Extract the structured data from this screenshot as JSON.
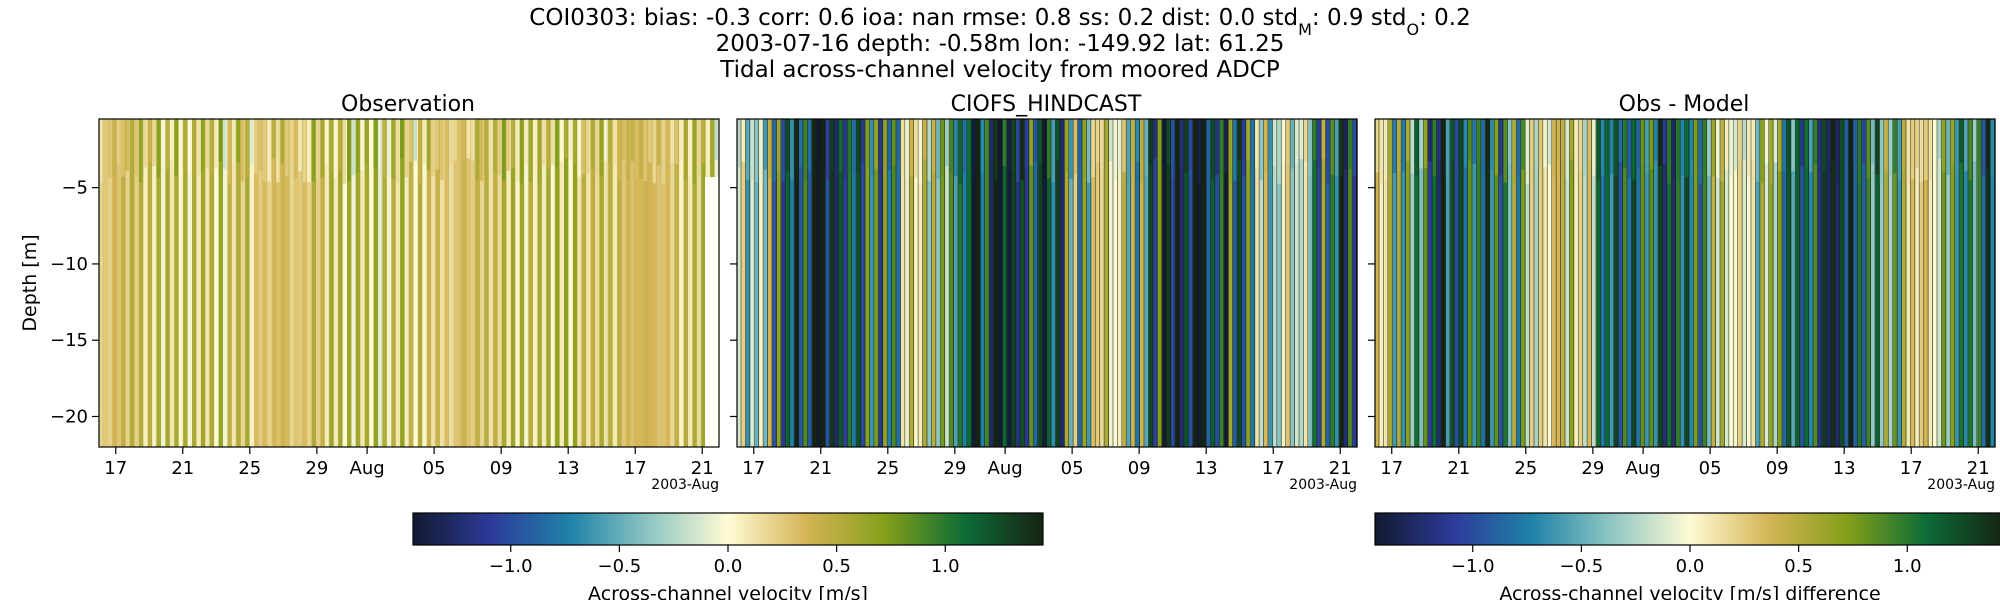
{
  "figure": {
    "title_lines": [
      "COI0303: bias: -0.3  corr: 0.6  ioa: nan  rmse: 0.8  ss: 0.2  dist: 0.0  std",
      "2003-07-16 depth: -0.58m lon: -149.92 lat: 61.25",
      "Tidal across-channel velocity from moored ADCP"
    ],
    "title_std_model": {
      "sub": "M",
      "value": ": 0.9"
    },
    "title_std_obs": {
      "prefix": "  std",
      "sub": "O",
      "value": ": 0.2"
    }
  },
  "chart_data": [
    {
      "type": "heatmap",
      "title": "Observation",
      "ylabel": "Depth [m]",
      "xlabel": "",
      "x_range": [
        "2003-07-16",
        "2003-08-22"
      ],
      "x_ticks": [
        "17",
        "21",
        "25",
        "29",
        "Aug",
        "05",
        "09",
        "13",
        "17",
        "21"
      ],
      "x_tick_dates": [
        "2003-07-17",
        "2003-07-21",
        "2003-07-25",
        "2003-07-29",
        "2003-08-01",
        "2003-08-05",
        "2003-08-09",
        "2003-08-13",
        "2003-08-17",
        "2003-08-21"
      ],
      "x_offset_label": "2003-Aug",
      "ylim": [
        -22,
        -0.5
      ],
      "y_ticks": [
        -5,
        -10,
        -15,
        -20
      ],
      "colormap": "delta",
      "clim": [
        -1.45,
        1.45
      ],
      "typical_range": [
        0.0,
        0.6
      ],
      "pattern": "tidal vertical stripes, mostly light yellow to olive"
    },
    {
      "type": "heatmap",
      "title": "CIOFS_HINDCAST",
      "ylabel": "",
      "xlabel": "",
      "x_range": [
        "2003-07-16",
        "2003-08-22"
      ],
      "x_ticks": [
        "17",
        "21",
        "25",
        "29",
        "Aug",
        "05",
        "09",
        "13",
        "17",
        "21"
      ],
      "x_tick_dates": [
        "2003-07-17",
        "2003-07-21",
        "2003-07-25",
        "2003-07-29",
        "2003-08-01",
        "2003-08-05",
        "2003-08-09",
        "2003-08-13",
        "2003-08-17",
        "2003-08-21"
      ],
      "x_offset_label": "2003-Aug",
      "ylim": [
        -22,
        -0.5
      ],
      "y_ticks": [
        -5,
        -10,
        -15,
        -20
      ],
      "colormap": "delta",
      "clim": [
        -1.45,
        1.45
      ],
      "typical_range": [
        -1.3,
        1.3
      ],
      "pattern": "strong tidal stripes alternating dark blue and green"
    },
    {
      "type": "heatmap",
      "title": "Obs - Model",
      "ylabel": "",
      "xlabel": "",
      "x_range": [
        "2003-07-16",
        "2003-08-22"
      ],
      "x_ticks": [
        "17",
        "21",
        "25",
        "29",
        "Aug",
        "05",
        "09",
        "13",
        "17",
        "21"
      ],
      "x_tick_dates": [
        "2003-07-17",
        "2003-07-21",
        "2003-07-25",
        "2003-07-29",
        "2003-08-01",
        "2003-08-05",
        "2003-08-09",
        "2003-08-13",
        "2003-08-17",
        "2003-08-21"
      ],
      "x_offset_label": "2003-Aug",
      "ylim": [
        -22,
        -0.5
      ],
      "y_ticks": [
        -5,
        -10,
        -15,
        -20
      ],
      "colormap": "delta",
      "clim": [
        -1.45,
        1.45
      ],
      "typical_range": [
        -1.0,
        1.2
      ],
      "pattern": "tidal stripes of teal, green and dark green"
    }
  ],
  "colorbars": [
    {
      "label": "Across-channel velocity [m/s]",
      "ticks": [
        "−1.0",
        "−0.5",
        "0.0",
        "0.5",
        "1.0"
      ],
      "tick_values": [
        -1.0,
        -0.5,
        0.0,
        0.5,
        1.0
      ],
      "range": [
        -1.45,
        1.45
      ]
    },
    {
      "label": "Across-channel velocity [m/s] difference",
      "ticks": [
        "−1.0",
        "−0.5",
        "0.0",
        "0.5",
        "1.0"
      ],
      "tick_values": [
        -1.0,
        -0.5,
        0.0,
        0.5,
        1.0
      ],
      "range": [
        -1.45,
        1.45
      ]
    }
  ],
  "colors": {
    "delta_stops": [
      "#111a30",
      "#2d3b9a",
      "#1f83a8",
      "#8fc6c3",
      "#fffbd4",
      "#d4b455",
      "#849f1a",
      "#0d6c36",
      "#162313"
    ]
  }
}
